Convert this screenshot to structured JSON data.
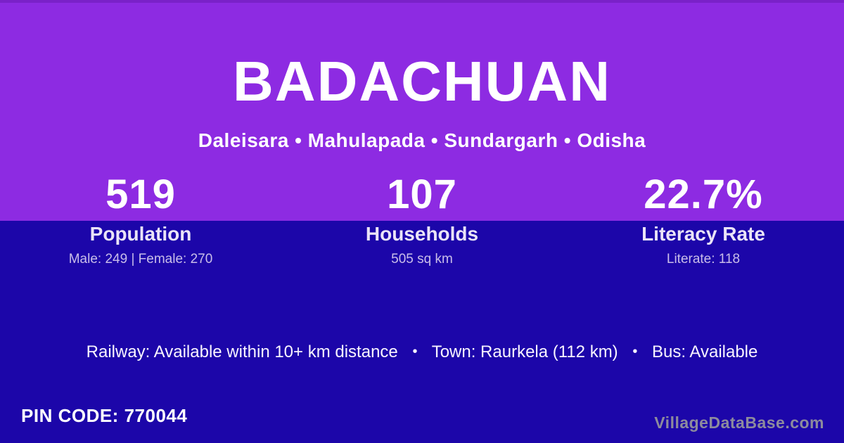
{
  "header": {
    "title": "BADACHUAN",
    "subtitle": "Daleisara • Mahulapada • Sundargarh • Odisha"
  },
  "stats": [
    {
      "value": "519",
      "label": "Population",
      "detail": "Male: 249 | Female: 270"
    },
    {
      "value": "107",
      "label": "Households",
      "detail": "505 sq km"
    },
    {
      "value": "22.7%",
      "label": "Literacy Rate",
      "detail": "Literate: 118"
    }
  ],
  "transport": {
    "items": [
      "Railway: Available within 10+ km distance",
      "Town: Raurkela (112 km)",
      "Bus: Available"
    ],
    "separator": "•"
  },
  "footer": {
    "pin_code": "PIN CODE: 770044",
    "brand": "VillageDataBase.com"
  },
  "colors": {
    "hero_purple": "#8D2BE2",
    "hero_top_edge": "#7A21C8",
    "bottom_indigo": "#1C06A9",
    "stat_label": "#EAE4F7",
    "stat_detail": "#C9BDE9",
    "brand_gray": "#8D8B9D",
    "text_white": "#FFFFFF"
  }
}
